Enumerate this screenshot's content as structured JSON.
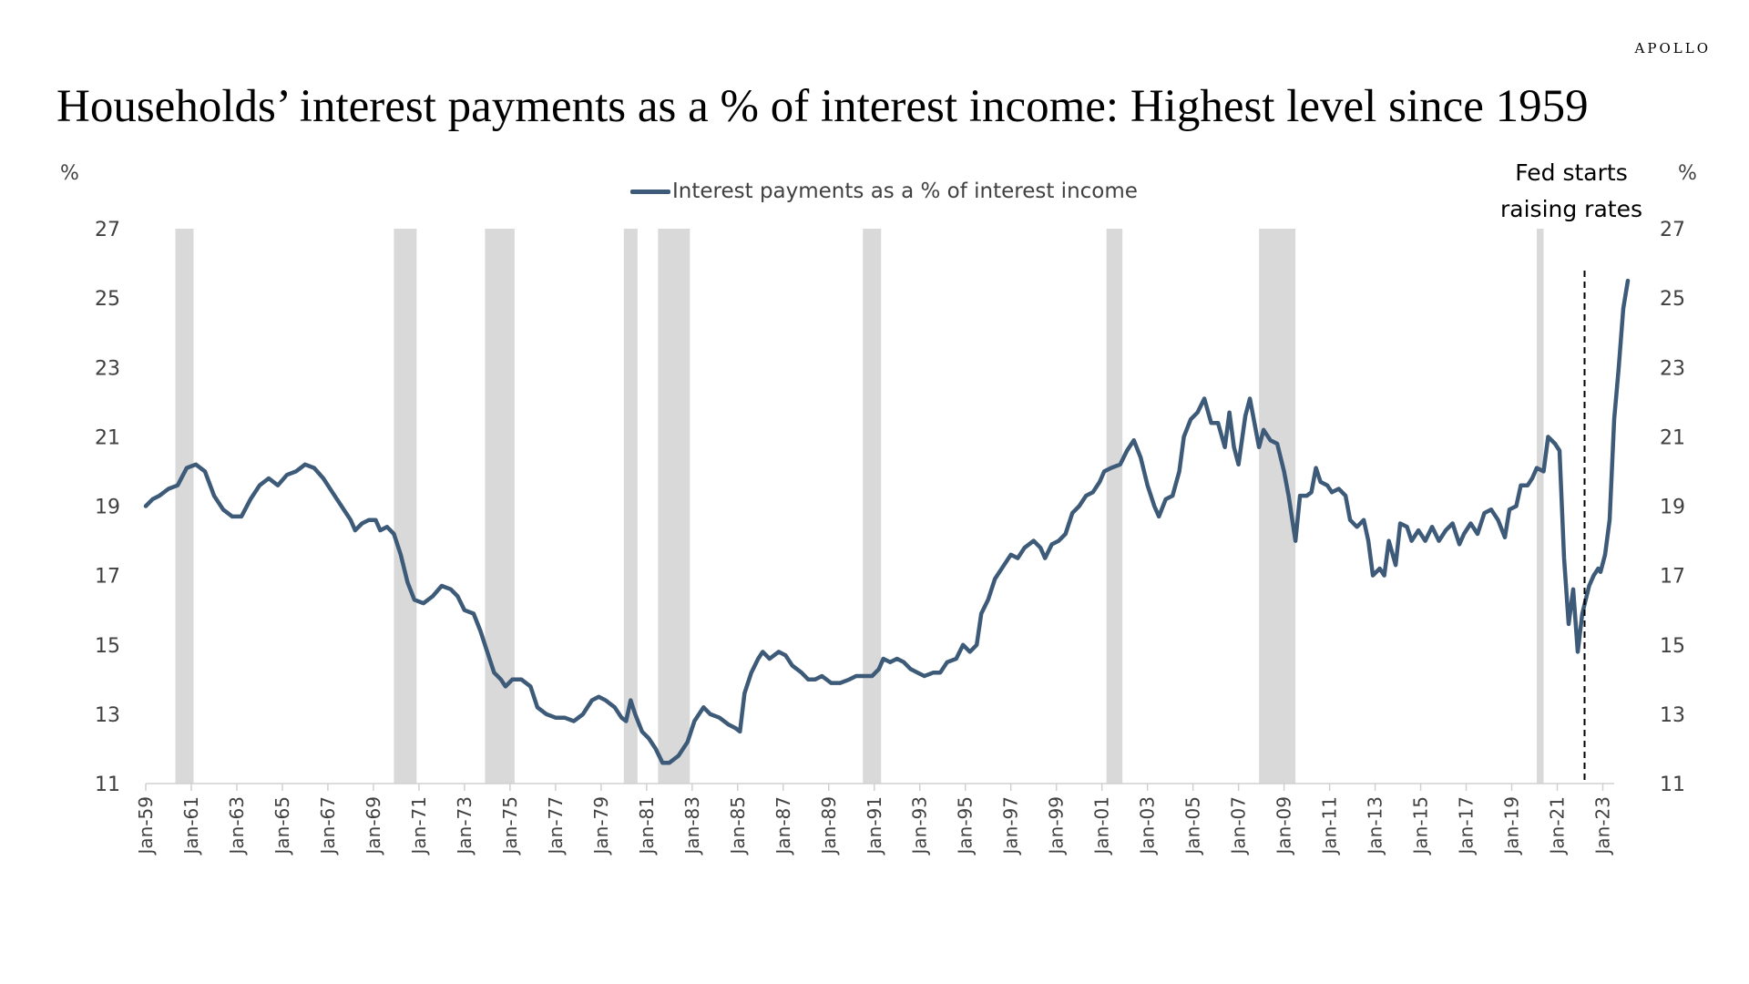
{
  "brand": "APOLLO",
  "title": "Households’ interest payments as a % of interest income: Highest level since 1959",
  "annotation": {
    "line1": "Fed starts",
    "line2": "raising rates",
    "date": 2022.2
  },
  "chart_data": {
    "type": "line",
    "title": "Households’ interest payments as a % of interest income: Highest level since 1959",
    "ylabel_left": "%",
    "ylabel_right": "%",
    "ylim": [
      11,
      27
    ],
    "y_ticks": [
      11,
      13,
      15,
      17,
      19,
      21,
      23,
      25,
      27
    ],
    "xlim": [
      1959.0,
      2023.5
    ],
    "x_tick_labels": [
      "Jan-59",
      "Jan-61",
      "Jan-63",
      "Jan-65",
      "Jan-67",
      "Jan-69",
      "Jan-71",
      "Jan-73",
      "Jan-75",
      "Jan-77",
      "Jan-79",
      "Jan-81",
      "Jan-83",
      "Jan-85",
      "Jan-87",
      "Jan-89",
      "Jan-91",
      "Jan-93",
      "Jan-95",
      "Jan-97",
      "Jan-99",
      "Jan-01",
      "Jan-03",
      "Jan-05",
      "Jan-07",
      "Jan-09",
      "Jan-11",
      "Jan-13",
      "Jan-15",
      "Jan-17",
      "Jan-19",
      "Jan-21",
      "Jan-23"
    ],
    "x_tick_years": [
      1959,
      1961,
      1963,
      1965,
      1967,
      1969,
      1971,
      1973,
      1975,
      1977,
      1979,
      1981,
      1983,
      1985,
      1987,
      1989,
      1991,
      1993,
      1995,
      1997,
      1999,
      2001,
      2003,
      2005,
      2007,
      2009,
      2011,
      2013,
      2015,
      2017,
      2019,
      2021,
      2023
    ],
    "legend": {
      "position": "top-center"
    },
    "colors": {
      "line": "#3d5a78",
      "recession": "#d9d9d9",
      "axis": "#d0d0d0"
    },
    "recessions": [
      [
        1960.3,
        1961.1
      ],
      [
        1969.9,
        1970.9
      ],
      [
        1973.9,
        1975.2
      ],
      [
        1980.0,
        1980.6
      ],
      [
        1981.5,
        1982.9
      ],
      [
        1990.5,
        1991.3
      ],
      [
        2001.2,
        2001.9
      ],
      [
        2007.9,
        2009.5
      ],
      [
        2020.1,
        2020.4
      ]
    ],
    "series": [
      {
        "name": "Interest payments as a % of interest income",
        "points": [
          [
            1959.0,
            19.0
          ],
          [
            1959.3,
            19.2
          ],
          [
            1959.6,
            19.3
          ],
          [
            1960.0,
            19.5
          ],
          [
            1960.4,
            19.6
          ],
          [
            1960.8,
            20.1
          ],
          [
            1961.2,
            20.2
          ],
          [
            1961.6,
            20.0
          ],
          [
            1962.0,
            19.3
          ],
          [
            1962.4,
            18.9
          ],
          [
            1962.8,
            18.7
          ],
          [
            1963.2,
            18.7
          ],
          [
            1963.6,
            19.2
          ],
          [
            1964.0,
            19.6
          ],
          [
            1964.4,
            19.8
          ],
          [
            1964.8,
            19.6
          ],
          [
            1965.2,
            19.9
          ],
          [
            1965.6,
            20.0
          ],
          [
            1966.0,
            20.2
          ],
          [
            1966.4,
            20.1
          ],
          [
            1966.8,
            19.8
          ],
          [
            1967.2,
            19.4
          ],
          [
            1967.6,
            19.0
          ],
          [
            1968.0,
            18.6
          ],
          [
            1968.2,
            18.3
          ],
          [
            1968.5,
            18.5
          ],
          [
            1968.8,
            18.6
          ],
          [
            1969.1,
            18.6
          ],
          [
            1969.3,
            18.3
          ],
          [
            1969.6,
            18.4
          ],
          [
            1969.9,
            18.2
          ],
          [
            1970.2,
            17.6
          ],
          [
            1970.5,
            16.8
          ],
          [
            1970.8,
            16.3
          ],
          [
            1971.2,
            16.2
          ],
          [
            1971.6,
            16.4
          ],
          [
            1972.0,
            16.7
          ],
          [
            1972.4,
            16.6
          ],
          [
            1972.7,
            16.4
          ],
          [
            1973.0,
            16.0
          ],
          [
            1973.4,
            15.9
          ],
          [
            1973.7,
            15.4
          ],
          [
            1974.0,
            14.8
          ],
          [
            1974.3,
            14.2
          ],
          [
            1974.6,
            14.0
          ],
          [
            1974.8,
            13.8
          ],
          [
            1975.1,
            14.0
          ],
          [
            1975.5,
            14.0
          ],
          [
            1975.9,
            13.8
          ],
          [
            1976.2,
            13.2
          ],
          [
            1976.6,
            13.0
          ],
          [
            1977.0,
            12.9
          ],
          [
            1977.4,
            12.9
          ],
          [
            1977.8,
            12.8
          ],
          [
            1978.2,
            13.0
          ],
          [
            1978.6,
            13.4
          ],
          [
            1978.9,
            13.5
          ],
          [
            1979.2,
            13.4
          ],
          [
            1979.6,
            13.2
          ],
          [
            1979.9,
            12.9
          ],
          [
            1980.1,
            12.8
          ],
          [
            1980.3,
            13.4
          ],
          [
            1980.5,
            13.0
          ],
          [
            1980.8,
            12.5
          ],
          [
            1981.1,
            12.3
          ],
          [
            1981.4,
            12.0
          ],
          [
            1981.7,
            11.6
          ],
          [
            1982.0,
            11.6
          ],
          [
            1982.4,
            11.8
          ],
          [
            1982.8,
            12.2
          ],
          [
            1983.1,
            12.8
          ],
          [
            1983.5,
            13.2
          ],
          [
            1983.8,
            13.0
          ],
          [
            1984.2,
            12.9
          ],
          [
            1984.6,
            12.7
          ],
          [
            1984.9,
            12.6
          ],
          [
            1985.1,
            12.5
          ],
          [
            1985.3,
            13.6
          ],
          [
            1985.6,
            14.2
          ],
          [
            1985.9,
            14.6
          ],
          [
            1986.1,
            14.8
          ],
          [
            1986.4,
            14.6
          ],
          [
            1986.8,
            14.8
          ],
          [
            1987.1,
            14.7
          ],
          [
            1987.4,
            14.4
          ],
          [
            1987.8,
            14.2
          ],
          [
            1988.1,
            14.0
          ],
          [
            1988.4,
            14.0
          ],
          [
            1988.7,
            14.1
          ],
          [
            1989.1,
            13.9
          ],
          [
            1989.5,
            13.9
          ],
          [
            1989.9,
            14.0
          ],
          [
            1990.2,
            14.1
          ],
          [
            1990.6,
            14.1
          ],
          [
            1990.9,
            14.1
          ],
          [
            1991.2,
            14.3
          ],
          [
            1991.4,
            14.6
          ],
          [
            1991.7,
            14.5
          ],
          [
            1992.0,
            14.6
          ],
          [
            1992.3,
            14.5
          ],
          [
            1992.6,
            14.3
          ],
          [
            1992.9,
            14.2
          ],
          [
            1993.2,
            14.1
          ],
          [
            1993.6,
            14.2
          ],
          [
            1993.9,
            14.2
          ],
          [
            1994.2,
            14.5
          ],
          [
            1994.6,
            14.6
          ],
          [
            1994.9,
            15.0
          ],
          [
            1995.2,
            14.8
          ],
          [
            1995.5,
            15.0
          ],
          [
            1995.7,
            15.9
          ],
          [
            1996.0,
            16.3
          ],
          [
            1996.3,
            16.9
          ],
          [
            1996.7,
            17.3
          ],
          [
            1997.0,
            17.6
          ],
          [
            1997.3,
            17.5
          ],
          [
            1997.6,
            17.8
          ],
          [
            1998.0,
            18.0
          ],
          [
            1998.3,
            17.8
          ],
          [
            1998.5,
            17.5
          ],
          [
            1998.8,
            17.9
          ],
          [
            1999.1,
            18.0
          ],
          [
            1999.4,
            18.2
          ],
          [
            1999.7,
            18.8
          ],
          [
            2000.0,
            19.0
          ],
          [
            2000.3,
            19.3
          ],
          [
            2000.6,
            19.4
          ],
          [
            2000.9,
            19.7
          ],
          [
            2001.1,
            20.0
          ],
          [
            2001.4,
            20.1
          ],
          [
            2001.8,
            20.2
          ],
          [
            2002.1,
            20.6
          ],
          [
            2002.4,
            20.9
          ],
          [
            2002.7,
            20.4
          ],
          [
            2003.0,
            19.6
          ],
          [
            2003.3,
            19.0
          ],
          [
            2003.5,
            18.7
          ],
          [
            2003.8,
            19.2
          ],
          [
            2004.1,
            19.3
          ],
          [
            2004.4,
            20.0
          ],
          [
            2004.6,
            21.0
          ],
          [
            2004.9,
            21.5
          ],
          [
            2005.2,
            21.7
          ],
          [
            2005.5,
            22.1
          ],
          [
            2005.8,
            21.4
          ],
          [
            2006.1,
            21.4
          ],
          [
            2006.4,
            20.7
          ],
          [
            2006.6,
            21.7
          ],
          [
            2006.8,
            20.7
          ],
          [
            2007.0,
            20.2
          ],
          [
            2007.3,
            21.6
          ],
          [
            2007.5,
            22.1
          ],
          [
            2007.7,
            21.4
          ],
          [
            2007.9,
            20.7
          ],
          [
            2008.1,
            21.2
          ],
          [
            2008.4,
            20.9
          ],
          [
            2008.7,
            20.8
          ],
          [
            2009.0,
            20.0
          ],
          [
            2009.2,
            19.3
          ],
          [
            2009.5,
            18.0
          ],
          [
            2009.7,
            19.3
          ],
          [
            2010.0,
            19.3
          ],
          [
            2010.2,
            19.4
          ],
          [
            2010.4,
            20.1
          ],
          [
            2010.6,
            19.7
          ],
          [
            2010.9,
            19.6
          ],
          [
            2011.1,
            19.4
          ],
          [
            2011.4,
            19.5
          ],
          [
            2011.7,
            19.3
          ],
          [
            2011.9,
            18.6
          ],
          [
            2012.2,
            18.4
          ],
          [
            2012.5,
            18.6
          ],
          [
            2012.7,
            18.0
          ],
          [
            2012.9,
            17.0
          ],
          [
            2013.2,
            17.2
          ],
          [
            2013.4,
            17.0
          ],
          [
            2013.6,
            18.0
          ],
          [
            2013.9,
            17.3
          ],
          [
            2014.1,
            18.5
          ],
          [
            2014.4,
            18.4
          ],
          [
            2014.6,
            18.0
          ],
          [
            2014.9,
            18.3
          ],
          [
            2015.2,
            18.0
          ],
          [
            2015.5,
            18.4
          ],
          [
            2015.8,
            18.0
          ],
          [
            2016.1,
            18.3
          ],
          [
            2016.4,
            18.5
          ],
          [
            2016.7,
            17.9
          ],
          [
            2016.9,
            18.2
          ],
          [
            2017.2,
            18.5
          ],
          [
            2017.5,
            18.2
          ],
          [
            2017.8,
            18.8
          ],
          [
            2018.1,
            18.9
          ],
          [
            2018.4,
            18.6
          ],
          [
            2018.7,
            18.1
          ],
          [
            2018.9,
            18.9
          ],
          [
            2019.2,
            19.0
          ],
          [
            2019.4,
            19.6
          ],
          [
            2019.7,
            19.6
          ],
          [
            2019.9,
            19.8
          ],
          [
            2020.1,
            20.1
          ],
          [
            2020.4,
            20.0
          ],
          [
            2020.6,
            21.0
          ],
          [
            2020.9,
            20.8
          ],
          [
            2021.1,
            20.6
          ],
          [
            2021.3,
            17.5
          ],
          [
            2021.5,
            15.6
          ],
          [
            2021.7,
            16.6
          ],
          [
            2021.9,
            14.8
          ],
          [
            2022.1,
            15.9
          ],
          [
            2022.4,
            16.7
          ],
          [
            2022.6,
            17.0
          ],
          [
            2022.8,
            17.2
          ],
          [
            2022.9,
            17.1
          ],
          [
            2023.1,
            17.6
          ],
          [
            2023.3,
            18.6
          ],
          [
            2023.5,
            21.5
          ],
          [
            2023.7,
            23.0
          ],
          [
            2023.9,
            24.7
          ],
          [
            2024.1,
            25.5
          ]
        ]
      }
    ]
  }
}
